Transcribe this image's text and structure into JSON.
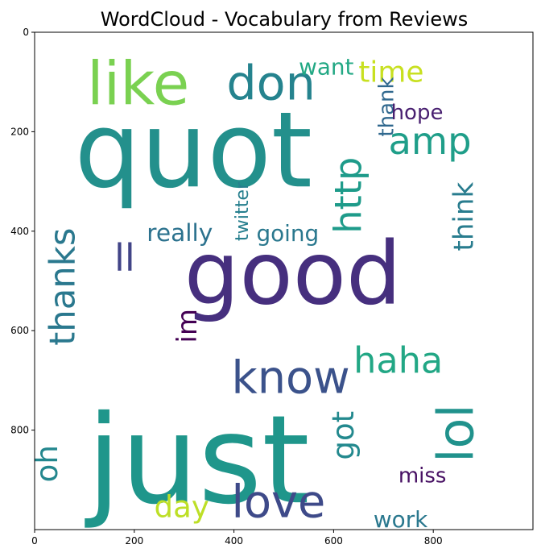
{
  "chart_data": {
    "type": "wordcloud",
    "title": "WordCloud - Vocabulary from Reviews",
    "xlim": [
      0,
      1000
    ],
    "ylim": [
      1000,
      0
    ],
    "xticks": [
      0,
      200,
      400,
      600,
      800
    ],
    "yticks": [
      0,
      200,
      400,
      600,
      800
    ],
    "words": [
      {
        "text": "quot",
        "x": 80,
        "y": 310,
        "size": 210,
        "color": "#23908c",
        "rotate": 0
      },
      {
        "text": "good",
        "x": 300,
        "y": 545,
        "size": 175,
        "color": "#462f7e",
        "rotate": 0
      },
      {
        "text": "just",
        "x": 105,
        "y": 945,
        "size": 245,
        "color": "#1f968b",
        "rotate": 0
      },
      {
        "text": "like",
        "x": 105,
        "y": 145,
        "size": 120,
        "color": "#7ad151",
        "rotate": 0
      },
      {
        "text": "don",
        "x": 385,
        "y": 135,
        "size": 95,
        "color": "#25838e",
        "rotate": 0
      },
      {
        "text": "amp",
        "x": 710,
        "y": 245,
        "size": 75,
        "color": "#1f9e89",
        "rotate": 0
      },
      {
        "text": "http",
        "x": 655,
        "y": 405,
        "size": 75,
        "color": "#1e9b8a",
        "rotate": -90
      },
      {
        "text": "know",
        "x": 395,
        "y": 725,
        "size": 90,
        "color": "#3b528b",
        "rotate": 0
      },
      {
        "text": "haha",
        "x": 640,
        "y": 685,
        "size": 72,
        "color": "#22a785",
        "rotate": 0
      },
      {
        "text": "lol",
        "x": 880,
        "y": 865,
        "size": 100,
        "color": "#20928c",
        "rotate": -90
      },
      {
        "text": "love",
        "x": 395,
        "y": 975,
        "size": 90,
        "color": "#3e4a89",
        "rotate": 0
      },
      {
        "text": "day",
        "x": 240,
        "y": 975,
        "size": 60,
        "color": "#bddf26",
        "rotate": 0
      },
      {
        "text": "thanks",
        "x": 80,
        "y": 630,
        "size": 70,
        "color": "#2a788e",
        "rotate": -90
      },
      {
        "text": "oh",
        "x": 45,
        "y": 905,
        "size": 60,
        "color": "#24878e",
        "rotate": -90
      },
      {
        "text": "time",
        "x": 650,
        "y": 100,
        "size": 58,
        "color": "#c8e020",
        "rotate": 0
      },
      {
        "text": "think",
        "x": 880,
        "y": 440,
        "size": 55,
        "color": "#287c8e",
        "rotate": -90
      },
      {
        "text": "got",
        "x": 640,
        "y": 860,
        "size": 60,
        "color": "#23898e",
        "rotate": -90
      },
      {
        "text": "im",
        "x": 325,
        "y": 625,
        "size": 55,
        "color": "#440154",
        "rotate": -90
      },
      {
        "text": "ll",
        "x": 160,
        "y": 480,
        "size": 75,
        "color": "#414487",
        "rotate": 0
      },
      {
        "text": "really",
        "x": 225,
        "y": 420,
        "size": 48,
        "color": "#2c728e",
        "rotate": 0
      },
      {
        "text": "going",
        "x": 445,
        "y": 420,
        "size": 45,
        "color": "#2a788e",
        "rotate": 0
      },
      {
        "text": "twitter",
        "x": 428,
        "y": 420,
        "size": 36,
        "color": "#277f8e",
        "rotate": -90
      },
      {
        "text": "thank",
        "x": 720,
        "y": 210,
        "size": 42,
        "color": "#30688e",
        "rotate": -90
      },
      {
        "text": "want",
        "x": 530,
        "y": 85,
        "size": 45,
        "color": "#22a884",
        "rotate": 0
      },
      {
        "text": "hope",
        "x": 715,
        "y": 175,
        "size": 42,
        "color": "#481f70",
        "rotate": 0
      },
      {
        "text": "work",
        "x": 680,
        "y": 995,
        "size": 45,
        "color": "#2a788e",
        "rotate": 0
      },
      {
        "text": "miss",
        "x": 730,
        "y": 905,
        "size": 42,
        "color": "#471063",
        "rotate": 0
      },
      {
        "text": "day_",
        "x": 0,
        "y": 0,
        "size": 0,
        "color": "#ffffff",
        "rotate": 0
      }
    ]
  }
}
